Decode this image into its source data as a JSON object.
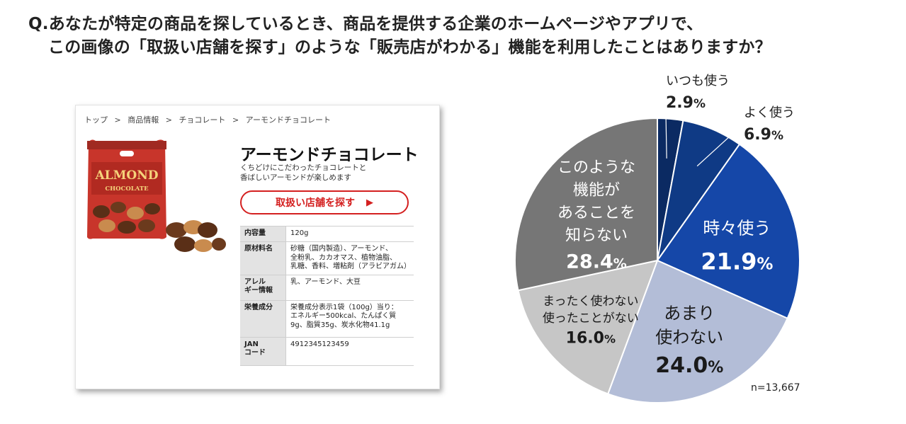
{
  "question": {
    "line1": "Q.あなたが特定の商品を探しているとき、商品を提供する企業のホームページやアプリで、",
    "line2": "この画像の「取扱い店舗を探す」のような「販売店がわかる」機能を利用したことはありますか？"
  },
  "mock": {
    "breadcrumb": [
      "トップ",
      ">",
      "商品情報",
      ">",
      "チョコレート",
      ">",
      "アーモンドチョコレート"
    ],
    "bag_word1": "ALMOND",
    "bag_word2": "CHOCOLATE",
    "product_title": "アーモンドチョコレート",
    "desc_line1": "くちどけにこだわったチョコレートと",
    "desc_line2": "香ばしいアーモンドが楽しめます",
    "button_label": "取扱い店舗を探す",
    "button_arrow": "▶",
    "spec": [
      {
        "k": "内容量",
        "v": [
          "120g"
        ]
      },
      {
        "k": "原材料名",
        "v": [
          "砂糖（国内製造）、アーモンド、",
          "全粉乳、カカオマス、植物油脂、",
          "乳糖、香料、増粘剤（アラビアガム）"
        ]
      },
      {
        "k": "アレル\nギー情報",
        "v": [
          "乳、アーモンド、大豆"
        ]
      },
      {
        "k": "栄養成分",
        "v": [
          "栄養成分表示1袋（100g）当り：",
          "エネルギー500kcal、たんぱく質",
          "9g、脂質35g、炭水化物41.1g"
        ]
      },
      {
        "k": "JAN\nコード",
        "v": [
          "4912345123459"
        ]
      }
    ]
  },
  "chart_data": {
    "type": "pie",
    "title": "",
    "start": "top",
    "direction": "clockwise",
    "slices": [
      {
        "label_lines": [
          "いつも使う"
        ],
        "num": "2.9",
        "pct": "%",
        "value": 2.9,
        "color": "#0b2a62",
        "label_outside": true
      },
      {
        "label_lines": [
          "よく使う"
        ],
        "num": "6.9",
        "pct": "%",
        "value": 6.9,
        "color": "#0f3a85",
        "label_outside": true
      },
      {
        "label_lines": [
          "時々使う"
        ],
        "num": "21.9",
        "pct": "%",
        "value": 21.9,
        "color": "#1547a8",
        "label_outside": false
      },
      {
        "label_lines": [
          "あまり",
          "使わない"
        ],
        "num": "24.0",
        "pct": "%",
        "value": 24.0,
        "color": "#b3bdd7",
        "label_outside": false
      },
      {
        "label_lines": [
          "まったく使わない",
          "使ったことがない"
        ],
        "num": "16.0",
        "pct": "%",
        "value": 16.0,
        "color": "#c6c6c6",
        "label_outside": false
      },
      {
        "label_lines": [
          "このような",
          "機能が",
          "あることを",
          "知らない"
        ],
        "num": "28.4",
        "pct": "%",
        "value": 28.4,
        "color": "#767676",
        "label_outside": false
      }
    ],
    "n_note": "n=13,667"
  },
  "colors": {
    "accent": "#d42020"
  }
}
